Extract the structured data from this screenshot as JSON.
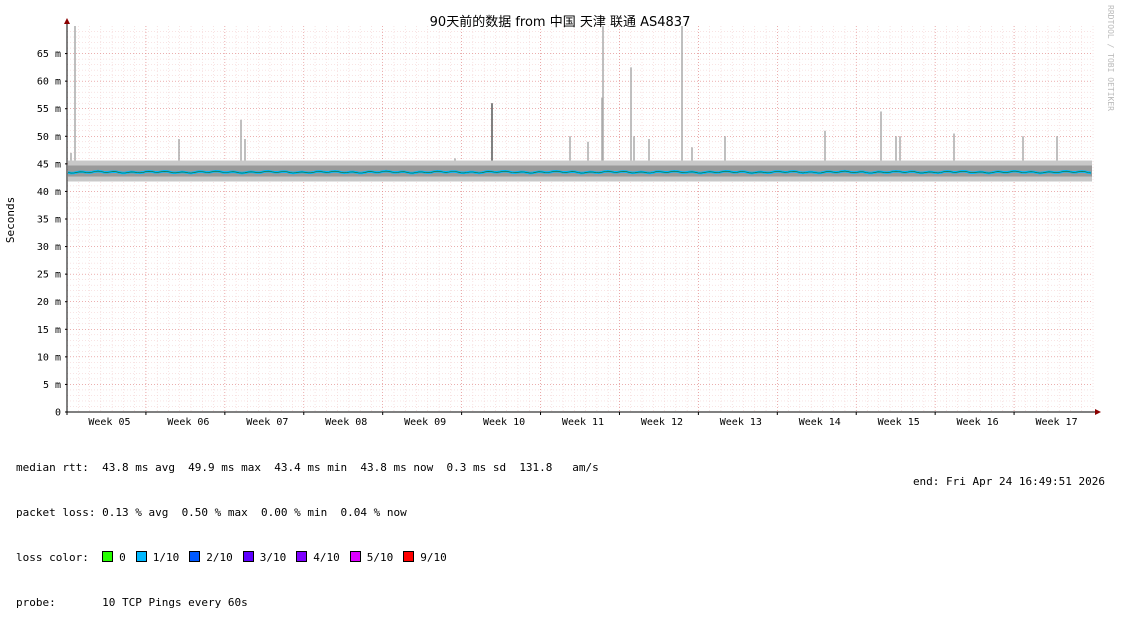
{
  "chart_data": {
    "type": "line",
    "title": "90天前的数据 from  中国 天津 联通 AS4837",
    "ylabel": "Seconds",
    "ylim": [
      0,
      70
    ],
    "y_ticks": [
      "0",
      "5 m",
      "10 m",
      "15 m",
      "20 m",
      "25 m",
      "30 m",
      "35 m",
      "40 m",
      "45 m",
      "50 m",
      "55 m",
      "60 m",
      "65 m"
    ],
    "y_tick_values": [
      0,
      5,
      10,
      15,
      20,
      25,
      30,
      35,
      40,
      45,
      50,
      55,
      60,
      65
    ],
    "x_ticks": [
      "Week 05",
      "Week 06",
      "Week 07",
      "Week 08",
      "Week 09",
      "Week 10",
      "Week 11",
      "Week 12",
      "Week 13",
      "Week 14",
      "Week 15",
      "Week 16",
      "Week 17"
    ],
    "grid": true,
    "series": [
      {
        "name": "median rtt",
        "baseline_ms": 43.5,
        "smoke_low_ms": 41.8,
        "smoke_high_ms": 45.6
      },
      {
        "name": "spikes",
        "peaks_ms": [
          47,
          70,
          49.5,
          53,
          49.5,
          46,
          56,
          50,
          49,
          70,
          57,
          62.5,
          50,
          49.5,
          70,
          48,
          50,
          51,
          54.5,
          50,
          50,
          50.5,
          50,
          50
        ]
      }
    ]
  },
  "watermark": "RRDTOOL / TOBI OETIKER",
  "stats": {
    "median_rtt": "median rtt:  43.8 ms avg  49.9 ms max  43.4 ms min  43.8 ms now  0.3 ms sd  131.8   am/s",
    "packet_loss": "packet loss: 0.13 % avg  0.50 % max  0.00 % min  0.04 % now",
    "loss_color_label": "loss color:",
    "loss_colors": [
      {
        "label": "0",
        "color": "#26ff00"
      },
      {
        "label": "1/10",
        "color": "#00b8ff"
      },
      {
        "label": "2/10",
        "color": "#0059ff"
      },
      {
        "label": "3/10",
        "color": "#5e00ff"
      },
      {
        "label": "4/10",
        "color": "#7e00ff"
      },
      {
        "label": "5/10",
        "color": "#dd00ff"
      },
      {
        "label": "9/10",
        "color": "#ff0000"
      }
    ],
    "probe": "probe:       10 TCP Pings every 60s",
    "end": "end: Fri Apr 24 16:49:51 2026"
  }
}
